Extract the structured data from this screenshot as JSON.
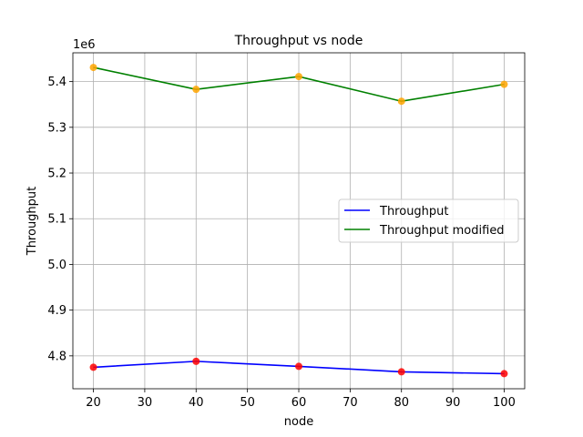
{
  "chart_data": {
    "type": "line",
    "title": "Throughput vs node",
    "xlabel": "node",
    "ylabel": "Throughput",
    "y_multiplier_label": "1e6",
    "x": [
      20,
      40,
      60,
      80,
      100
    ],
    "xlim": [
      16,
      104
    ],
    "ylim": [
      4.728,
      5.463
    ],
    "x_ticks": [
      20,
      30,
      40,
      50,
      60,
      70,
      80,
      90,
      100
    ],
    "x_tick_labels": [
      "20",
      "30",
      "40",
      "50",
      "60",
      "70",
      "80",
      "90",
      "100"
    ],
    "y_ticks": [
      4.8,
      4.9,
      5.0,
      5.1,
      5.2,
      5.3,
      5.4
    ],
    "y_tick_labels": [
      "4.8",
      "4.9",
      "5.0",
      "5.1",
      "5.2",
      "5.3",
      "5.4"
    ],
    "grid": true,
    "legend_position": "center-right",
    "series": [
      {
        "name": "Throughput",
        "values": [
          4.775,
          4.788,
          4.777,
          4.765,
          4.761
        ],
        "line_color": "#0000ff",
        "marker_color": "#ff0000"
      },
      {
        "name": "Throughput modified",
        "values": [
          5.431,
          5.383,
          5.411,
          5.357,
          5.394
        ],
        "line_color": "#008000",
        "marker_color": "#ffa500"
      }
    ]
  }
}
